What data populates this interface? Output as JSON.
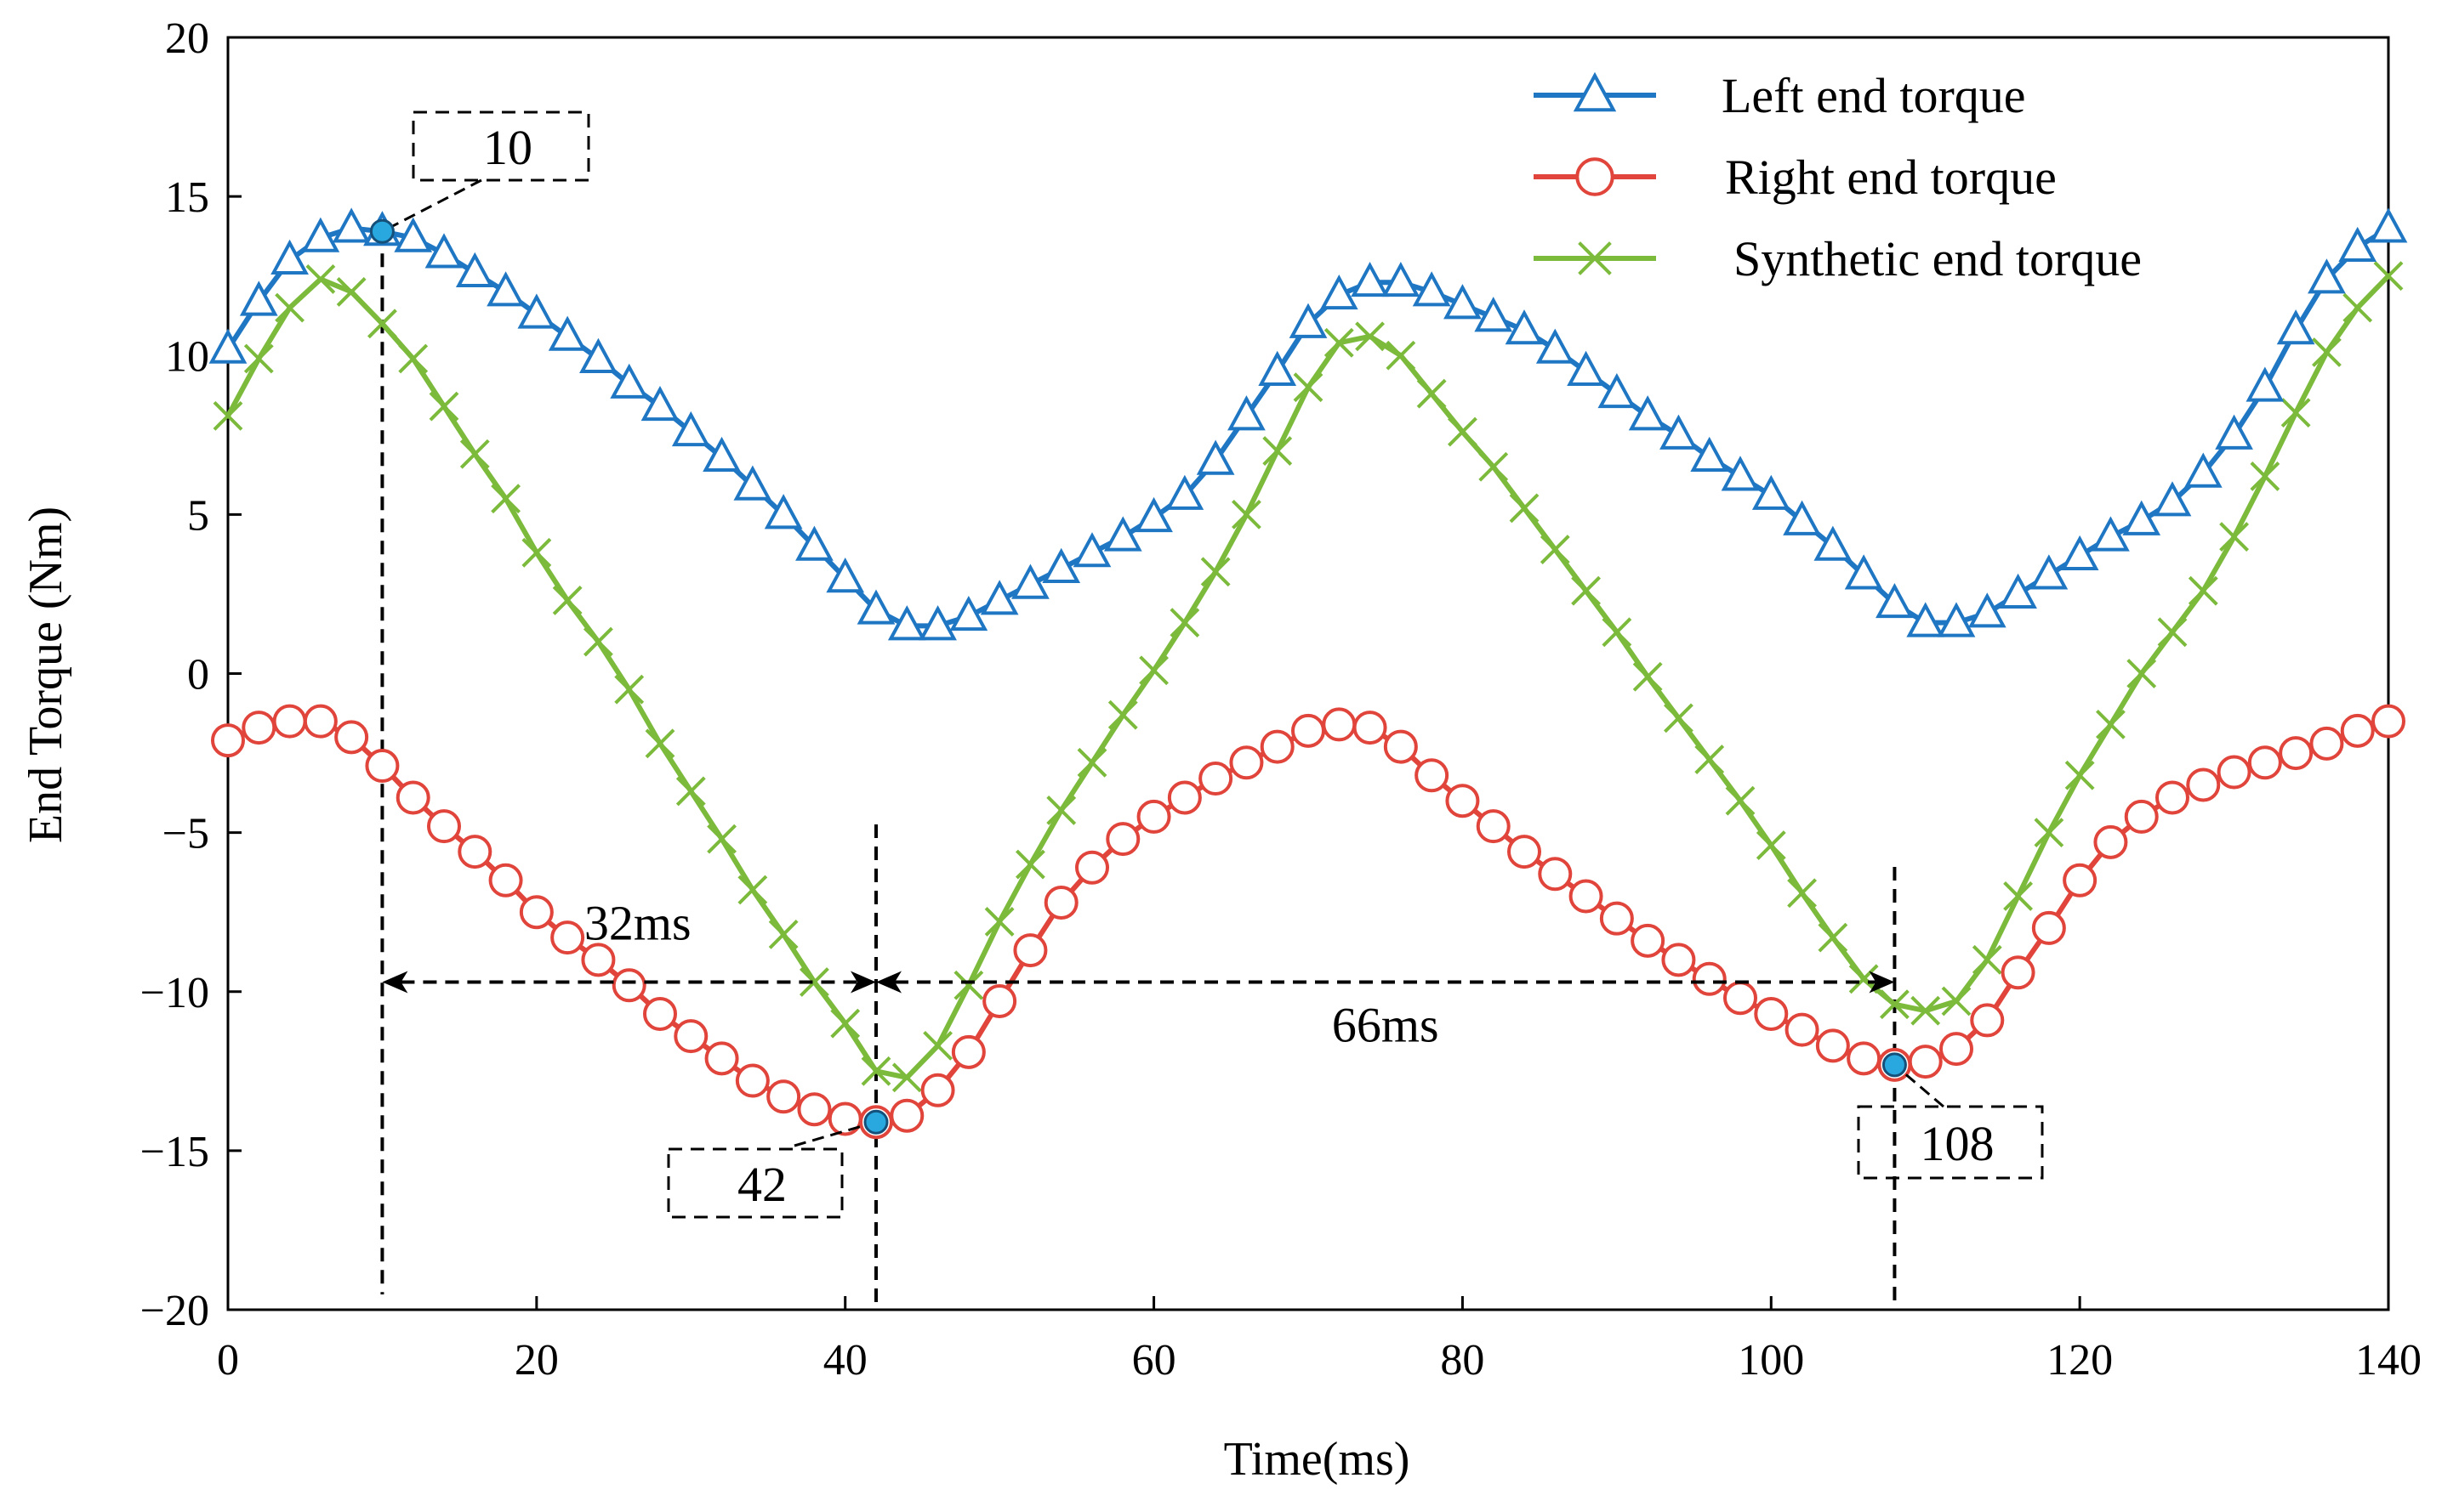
{
  "colors": {
    "left": "#1f77c4",
    "right": "#e0443a",
    "synthetic": "#7cba3c",
    "marker_fill": "#29a8e0",
    "axis": "#000000"
  },
  "chart_data": {
    "type": "line",
    "title": "",
    "xlabel": "Time(ms)",
    "ylabel": "End Torque (Nm)",
    "xlim": [
      0,
      140
    ],
    "ylim": [
      -20,
      20
    ],
    "xticks": [
      0,
      20,
      40,
      60,
      80,
      100,
      120,
      140
    ],
    "yticks": [
      20,
      15,
      10,
      5,
      0,
      -5,
      -10,
      -15,
      -20
    ],
    "ytick_labels": [
      "20",
      "15",
      "10",
      "5",
      "0",
      "−5",
      "−10",
      "−15",
      "−20"
    ],
    "grid": false,
    "legend_position": "top-right",
    "x": [
      0,
      2,
      4,
      6,
      8,
      10,
      12,
      14,
      16,
      18,
      20,
      22,
      24,
      26,
      28,
      30,
      32,
      34,
      36,
      38,
      40,
      42,
      44,
      46,
      48,
      50,
      52,
      54,
      56,
      58,
      60,
      62,
      64,
      66,
      68,
      70,
      72,
      74,
      76,
      78,
      80,
      82,
      84,
      86,
      88,
      90,
      92,
      94,
      96,
      98,
      100,
      102,
      104,
      106,
      108,
      110,
      112,
      114,
      116,
      118,
      120,
      122,
      124,
      126,
      128,
      130,
      132,
      134,
      136,
      138,
      140
    ],
    "series": [
      {
        "name": "Left end torque",
        "color_key": "left",
        "marker": "triangle",
        "values": [
          10.2,
          11.7,
          13.0,
          13.7,
          14.0,
          13.9,
          13.7,
          13.2,
          12.6,
          12.0,
          11.3,
          10.6,
          9.9,
          9.1,
          8.4,
          7.6,
          6.8,
          5.9,
          5.0,
          4.0,
          3.0,
          2.0,
          1.5,
          1.5,
          1.8,
          2.3,
          2.8,
          3.3,
          3.8,
          4.3,
          4.9,
          5.6,
          6.7,
          8.1,
          9.5,
          11.0,
          11.9,
          12.3,
          12.3,
          12.0,
          11.6,
          11.2,
          10.8,
          10.2,
          9.5,
          8.8,
          8.1,
          7.5,
          6.8,
          6.2,
          5.6,
          4.8,
          4.0,
          3.1,
          2.2,
          1.6,
          1.6,
          1.9,
          2.5,
          3.1,
          3.7,
          4.3,
          4.8,
          5.4,
          6.3,
          7.5,
          9.0,
          10.8,
          12.4,
          13.4,
          14.0
        ]
      },
      {
        "name": "Right end torque",
        "color_key": "right",
        "marker": "circle",
        "values": [
          -2.1,
          -1.7,
          -1.5,
          -1.5,
          -2.0,
          -2.9,
          -3.9,
          -4.8,
          -5.6,
          -6.5,
          -7.5,
          -8.3,
          -9.0,
          -9.8,
          -10.7,
          -11.4,
          -12.1,
          -12.8,
          -13.3,
          -13.7,
          -14.0,
          -14.1,
          -13.9,
          -13.1,
          -11.9,
          -10.3,
          -8.7,
          -7.2,
          -6.1,
          -5.2,
          -4.5,
          -3.9,
          -3.3,
          -2.8,
          -2.3,
          -1.8,
          -1.6,
          -1.7,
          -2.3,
          -3.2,
          -4.0,
          -4.8,
          -5.6,
          -6.3,
          -7.0,
          -7.7,
          -8.4,
          -9.0,
          -9.6,
          -10.2,
          -10.7,
          -11.2,
          -11.7,
          -12.1,
          -12.3,
          -12.2,
          -11.8,
          -10.9,
          -9.4,
          -8.0,
          -6.5,
          -5.3,
          -4.5,
          -3.9,
          -3.5,
          -3.1,
          -2.8,
          -2.5,
          -2.2,
          -1.8,
          -1.5
        ]
      },
      {
        "name": "Synthetic end torque",
        "color_key": "synthetic",
        "marker": "x",
        "values": [
          8.1,
          9.9,
          11.5,
          12.4,
          12.0,
          11.0,
          9.9,
          8.4,
          6.9,
          5.5,
          3.8,
          2.3,
          1.0,
          -0.5,
          -2.2,
          -3.7,
          -5.2,
          -6.8,
          -8.2,
          -9.7,
          -11.0,
          -12.5,
          -12.7,
          -11.7,
          -9.8,
          -7.8,
          -6.0,
          -4.3,
          -2.8,
          -1.3,
          0.1,
          1.6,
          3.2,
          5.0,
          7.0,
          9.0,
          10.4,
          10.6,
          10.0,
          8.8,
          7.6,
          6.5,
          5.2,
          3.9,
          2.6,
          1.3,
          -0.1,
          -1.4,
          -2.7,
          -4.0,
          -5.4,
          -6.9,
          -8.3,
          -9.6,
          -10.4,
          -10.6,
          -10.3,
          -9.0,
          -7.0,
          -5.0,
          -3.2,
          -1.6,
          0.0,
          1.3,
          2.6,
          4.3,
          6.2,
          8.2,
          10.1,
          11.5,
          12.5
        ]
      }
    ],
    "annotations": {
      "peak_label": "10",
      "trough1_label": "42",
      "trough2_label": "108",
      "interval1_label": "32ms",
      "interval2_label": "66ms",
      "peak_point": [
        10,
        13.9
      ],
      "trough1_point": [
        42,
        -14.1
      ],
      "trough2_point": [
        108,
        -12.3
      ],
      "interval_y": -9.7,
      "interval1": [
        10,
        42
      ],
      "interval2": [
        42,
        108
      ]
    }
  }
}
